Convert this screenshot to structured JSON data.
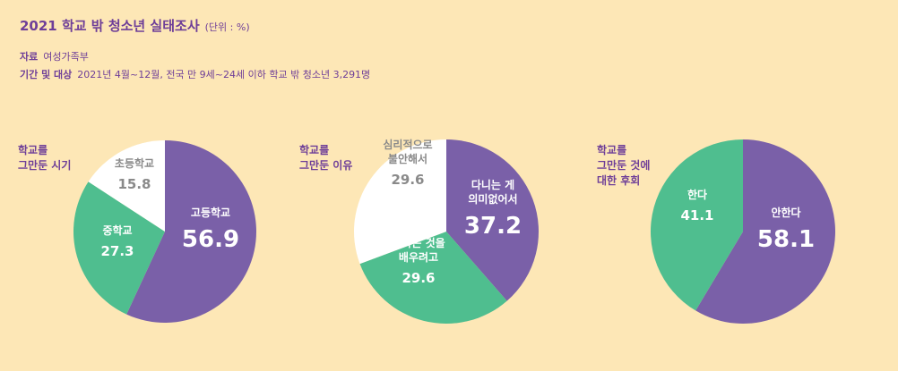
{
  "title": "2021 학교 밖 청소년 실태조사",
  "unit": "(단위 : %)",
  "source": {
    "label": "자료",
    "value": "여성가족부"
  },
  "period": {
    "label": "기간 및 대상",
    "value": "2021년 4월~12월, 전국 만 9세~24세 이하 학교 밖 청소년 3,291명"
  },
  "colors": {
    "purple": "#7a60a8",
    "green": "#4fbe8f",
    "white": "#ffffff",
    "gray": "#8a8a8a"
  },
  "chart_data": [
    {
      "type": "pie",
      "title": "학교를\n그만둔 시기",
      "slices": [
        {
          "label": "고등학교",
          "value": 56.9,
          "color": "#7a60a8"
        },
        {
          "label": "중학교",
          "value": 27.3,
          "color": "#4fbe8f"
        },
        {
          "label": "초등학교",
          "value": 15.8,
          "color": "#ffffff"
        }
      ]
    },
    {
      "type": "pie",
      "title": "학교를\n그만둔 이유",
      "slices": [
        {
          "label": "다니는 게\n의미없어서",
          "value": 37.2,
          "color": "#7a60a8"
        },
        {
          "label": "원하는 것을\n배우려고",
          "value": 29.6,
          "color": "#4fbe8f"
        },
        {
          "label": "심리적으로\n불안해서",
          "value": 29.6,
          "color": "#ffffff"
        }
      ]
    },
    {
      "type": "pie",
      "title": "학교를\n그만둔 것에\n대한 후회",
      "slices": [
        {
          "label": "안한다",
          "value": 58.1,
          "color": "#7a60a8"
        },
        {
          "label": "한다",
          "value": 41.1,
          "color": "#4fbe8f"
        }
      ]
    }
  ]
}
